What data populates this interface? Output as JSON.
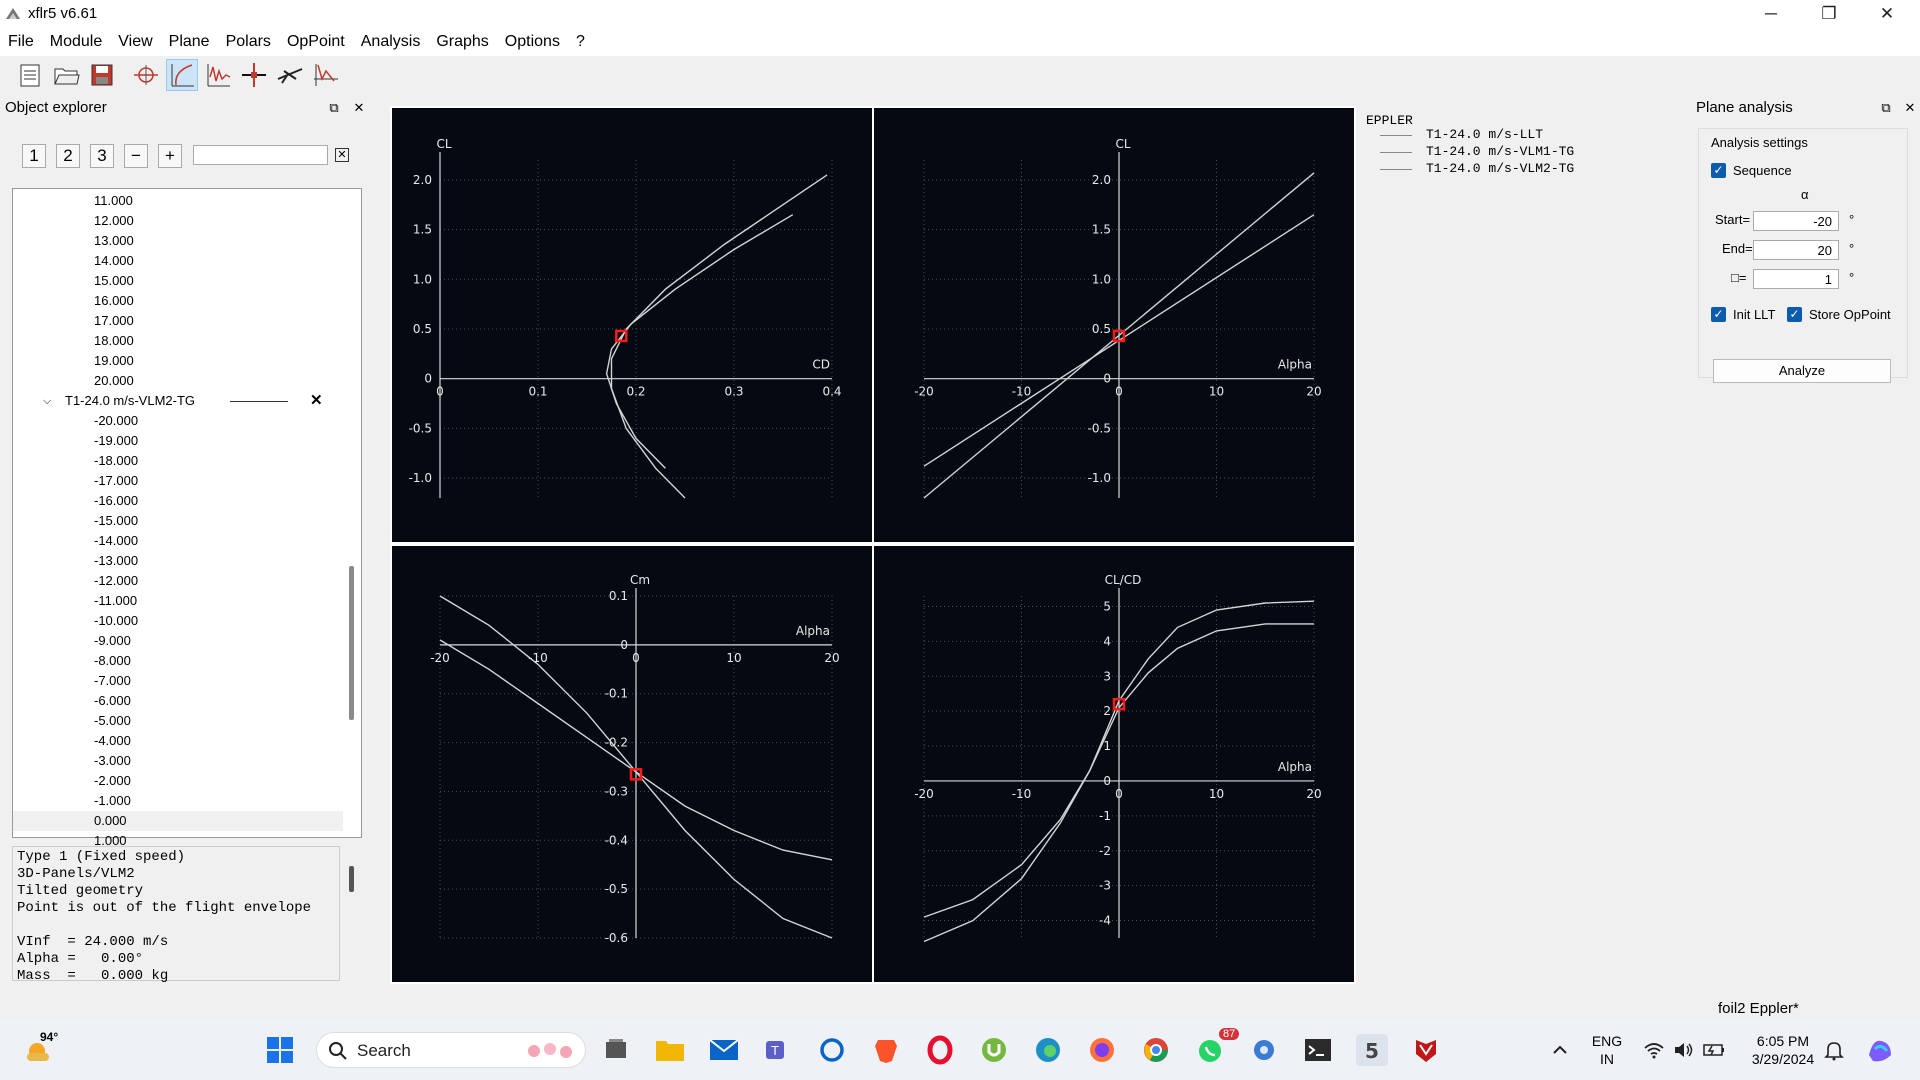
{
  "window": {
    "title": "xflr5 v6.61"
  },
  "menu": [
    "File",
    "Module",
    "View",
    "Plane",
    "Polars",
    "OpPoint",
    "Analysis",
    "Graphs",
    "Options",
    "?"
  ],
  "object_explorer": {
    "title": "Object explorer",
    "buttons": [
      "1",
      "2",
      "3",
      "−",
      "+"
    ],
    "filter_value": "",
    "rows_top": [
      "11.000",
      "12.000",
      "13.000",
      "14.000",
      "15.000",
      "16.000",
      "17.000",
      "18.000",
      "19.000",
      "20.000"
    ],
    "polar_name": "T1-24.0 m/s-VLM2-TG",
    "rows_bottom": [
      "-20.000",
      "-19.000",
      "-18.000",
      "-17.000",
      "-16.000",
      "-15.000",
      "-14.000",
      "-13.000",
      "-12.000",
      "-11.000",
      "-10.000",
      "-9.000",
      "-8.000",
      "-7.000",
      "-6.000",
      "-5.000",
      "-4.000",
      "-3.000",
      "-2.000",
      "-1.000",
      "0.000",
      "1.000"
    ],
    "selected_row": "0.000",
    "info_lines": [
      "Type 1 (Fixed speed)",
      "3D-Panels/VLM2",
      "Tilted geometry",
      "Point is out of the flight envelope",
      "",
      "VInf  = 24.000 m/s",
      "Alpha =   0.00°",
      "Mass  =   0.000 kg"
    ]
  },
  "legend": {
    "title": "EPPLER",
    "items": [
      "T1-24.0 m/s-LLT",
      "T1-24.0 m/s-VLM1-TG",
      "T1-24.0 m/s-VLM2-TG"
    ]
  },
  "plane_analysis": {
    "title": "Plane analysis",
    "group_title": "Analysis settings",
    "sequence_label": "Sequence",
    "alpha_symbol": "α",
    "start_label": "Start=",
    "start_value": "-20",
    "end_label": "End=",
    "end_value": "20",
    "delta_label": "□=",
    "delta_value": "1",
    "unit": "°",
    "init_llt_label": "Init LLT",
    "store_oppoint_label": "Store OpPoint",
    "analyze_label": "Analyze"
  },
  "status_text": "foil2 Eppler*",
  "taskbar": {
    "weather_temp": "94°",
    "search_label": "Search",
    "badge_count": "87",
    "lang": "ENG",
    "region": "IN",
    "time": "6:05 PM",
    "date": "3/29/2024"
  },
  "chart_data": [
    {
      "type": "line",
      "xlabel": "CD",
      "ylabel": "CL",
      "xlim": [
        0,
        0.4
      ],
      "ylim": [
        -1.2,
        2.2
      ],
      "xticks": [
        0,
        0.1,
        0.2,
        0.3,
        0.4
      ],
      "yticks": [
        -1.0,
        -0.5,
        0,
        0.5,
        1.0,
        1.5,
        2.0
      ],
      "xtick_labels": [
        "0",
        "0.1",
        "0.2",
        "0.3",
        "0.4"
      ],
      "ytick_labels": [
        "-1.0",
        "-0.5",
        "0",
        "0.5",
        "1.0",
        "1.5",
        "2.0"
      ],
      "series": [
        {
          "x": [
            0.25,
            0.22,
            0.19,
            0.175,
            0.175,
            0.19,
            0.23,
            0.29,
            0.35,
            0.395
          ],
          "y": [
            -1.2,
            -0.9,
            -0.5,
            -0.1,
            0.2,
            0.5,
            0.9,
            1.35,
            1.75,
            2.05
          ]
        },
        {
          "x": [
            0.23,
            0.2,
            0.18,
            0.17,
            0.175,
            0.195,
            0.24,
            0.3,
            0.36
          ],
          "y": [
            -0.9,
            -0.6,
            -0.25,
            0.05,
            0.3,
            0.55,
            0.9,
            1.3,
            1.65
          ]
        }
      ],
      "highlight": {
        "x": 0.185,
        "y": 0.43
      }
    },
    {
      "type": "line",
      "xlabel": "Alpha",
      "ylabel": "CL",
      "xlim": [
        -20,
        20
      ],
      "ylim": [
        -1.2,
        2.2
      ],
      "xticks": [
        -20,
        -10,
        0,
        10,
        20
      ],
      "yticks": [
        -1.0,
        -0.5,
        0,
        0.5,
        1.0,
        1.5,
        2.0
      ],
      "xtick_labels": [
        "-20",
        "-10",
        "0",
        "10",
        "20"
      ],
      "ytick_labels": [
        "-1.0",
        "-0.5",
        "0",
        "0.5",
        "1.0",
        "1.5",
        "2.0"
      ],
      "series": [
        {
          "x": [
            -20,
            20
          ],
          "y": [
            -1.2,
            2.07
          ]
        },
        {
          "x": [
            -20,
            20
          ],
          "y": [
            -0.88,
            1.65
          ]
        }
      ],
      "highlight": {
        "x": 0,
        "y": 0.43
      }
    },
    {
      "type": "line",
      "xlabel": "Alpha",
      "ylabel": "Cm",
      "xlim": [
        -20,
        20
      ],
      "ylim": [
        -0.6,
        0.1
      ],
      "xticks": [
        -20,
        -10,
        0,
        10,
        20
      ],
      "yticks": [
        -0.6,
        -0.5,
        -0.4,
        -0.3,
        -0.2,
        -0.1,
        0,
        0.1
      ],
      "xtick_labels": [
        "-20",
        "-10",
        "0",
        "10",
        "20"
      ],
      "ytick_labels": [
        "-0.6",
        "-0.5",
        "-0.4",
        "-0.3",
        "-0.2",
        "-0.1",
        "0",
        "0.1"
      ],
      "series": [
        {
          "x": [
            -20,
            -15,
            -10,
            -5,
            0,
            5,
            10,
            15,
            20
          ],
          "y": [
            0.1,
            0.04,
            -0.04,
            -0.14,
            -0.26,
            -0.38,
            -0.48,
            -0.56,
            -0.6
          ]
        },
        {
          "x": [
            -20,
            -15,
            -10,
            -5,
            0,
            5,
            10,
            15,
            20
          ],
          "y": [
            0.01,
            -0.05,
            -0.12,
            -0.19,
            -0.26,
            -0.33,
            -0.38,
            -0.42,
            -0.44
          ]
        }
      ],
      "highlight": {
        "x": 0,
        "y": -0.265
      }
    },
    {
      "type": "line",
      "xlabel": "Alpha",
      "ylabel": "CL/CD",
      "xlim": [
        -20,
        20
      ],
      "ylim": [
        -4.5,
        5.3
      ],
      "xticks": [
        -20,
        -10,
        0,
        10,
        20
      ],
      "yticks": [
        -4,
        -3,
        -2,
        -1,
        0,
        1,
        2,
        3,
        4,
        5
      ],
      "xtick_labels": [
        "-20",
        "-10",
        "0",
        "10",
        "20"
      ],
      "ytick_labels": [
        "-4",
        "-3",
        "-2",
        "-1",
        "0",
        "1",
        "2",
        "3",
        "4",
        "5"
      ],
      "series": [
        {
          "x": [
            -20,
            -15,
            -10,
            -6,
            -3,
            0,
            3,
            6,
            10,
            15,
            20
          ],
          "y": [
            -4.6,
            -4.0,
            -2.8,
            -1.2,
            0.3,
            2.3,
            3.5,
            4.4,
            4.9,
            5.1,
            5.15
          ]
        },
        {
          "x": [
            -20,
            -15,
            -10,
            -6,
            -3,
            0,
            3,
            6,
            10,
            15,
            20
          ],
          "y": [
            -3.9,
            -3.4,
            -2.4,
            -1.1,
            0.3,
            2.1,
            3.1,
            3.8,
            4.3,
            4.5,
            4.5
          ]
        }
      ],
      "highlight": {
        "x": 0,
        "y": 2.2
      }
    }
  ]
}
